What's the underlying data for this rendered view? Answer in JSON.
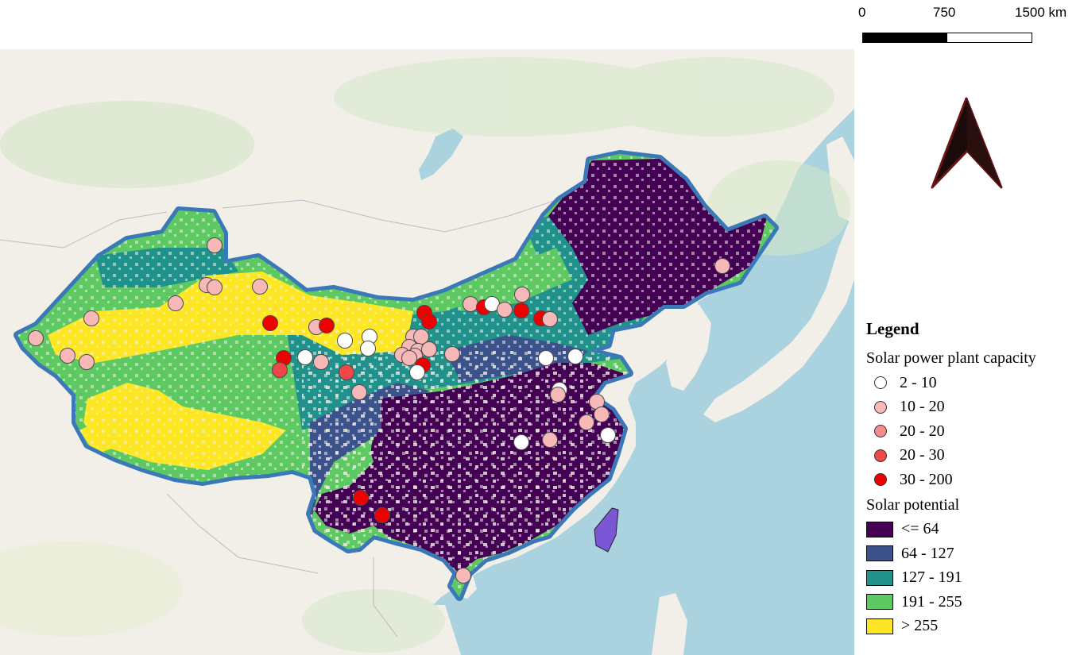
{
  "scale_bar": {
    "labels": [
      "0",
      "750",
      "1500 km"
    ]
  },
  "legend": {
    "title": "Legend",
    "capacity_title": "Solar power plant capacity",
    "capacity_classes": [
      {
        "label": "2 - 10",
        "color": "#ffffff"
      },
      {
        "label": "10 - 20",
        "color": "#f7b8b8"
      },
      {
        "label": "20 - 20",
        "color": "#f48c8c"
      },
      {
        "label": "20 - 30",
        "color": "#ee4848"
      },
      {
        "label": "30 - 200",
        "color": "#ee0000"
      }
    ],
    "potential_title": "Solar potential",
    "potential_classes": [
      {
        "label": "<= 64",
        "color": "#440154"
      },
      {
        "label": "64 - 127",
        "color": "#3b528b"
      },
      {
        "label": "127 - 191",
        "color": "#21918c"
      },
      {
        "label": "191 - 255",
        "color": "#5ec962"
      },
      {
        "label": "> 255",
        "color": "#fde725"
      }
    ]
  },
  "colors": {
    "sea": "#aad3df",
    "land": "#f2efe9",
    "border_outline": "#3a78b8",
    "taiwan": "#7b57d6",
    "north_arrow": "#1a0a0a"
  },
  "icons": {
    "north_arrow": "north-arrow-icon"
  }
}
